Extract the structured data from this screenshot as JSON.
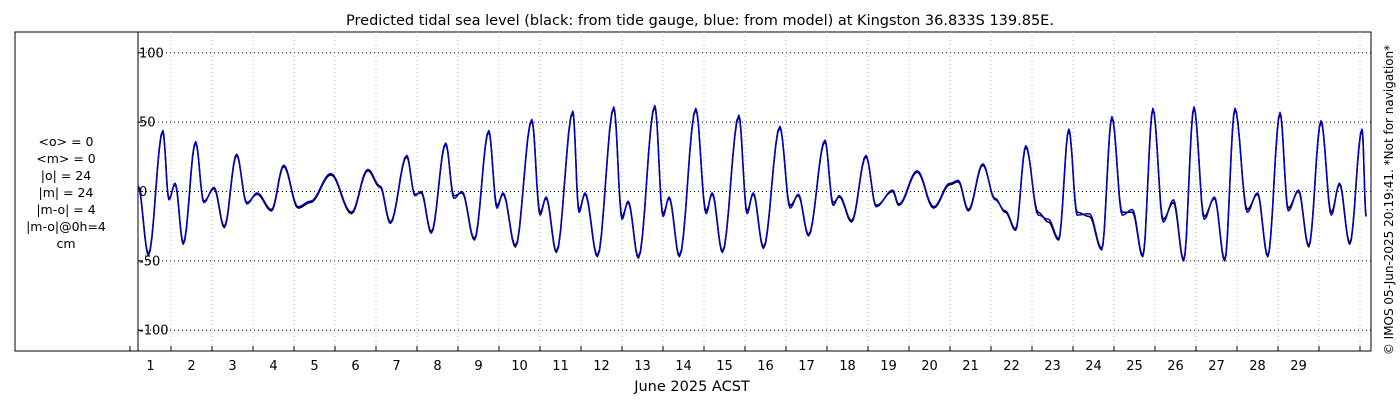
{
  "chart_data": {
    "type": "line",
    "title": "Predicted tidal sea level (black: from tide gauge, blue: from model) at Kingston 36.833S 139.85E.",
    "xlabel": "June 2025 ACST",
    "ylabel": "",
    "ylim": [
      -115,
      115
    ],
    "xlim": [
      0,
      30.15
    ],
    "yticks": [
      -100,
      -50,
      0,
      50,
      100
    ],
    "ytick_labels": [
      "-100",
      "-50",
      "0",
      "50",
      "100"
    ],
    "xticks": [
      1,
      2,
      3,
      4,
      5,
      6,
      7,
      8,
      9,
      10,
      11,
      12,
      13,
      14,
      15,
      16,
      17,
      18,
      19,
      20,
      21,
      22,
      23,
      24,
      25,
      26,
      27,
      28,
      29
    ],
    "xtick_labels": [
      "1",
      "2",
      "3",
      "4",
      "5",
      "6",
      "7",
      "8",
      "9",
      "10",
      "11",
      "12",
      "13",
      "14",
      "15",
      "16",
      "17",
      "18",
      "19",
      "20",
      "21",
      "22",
      "23",
      "24",
      "25",
      "26",
      "27",
      "28",
      "29"
    ],
    "grid": "dotted",
    "series": [
      {
        "color": "#000000",
        "peaks": [
          {
            "t": 0.2,
            "v": 3
          },
          {
            "t": 0.45,
            "v": -46
          },
          {
            "t": 0.8,
            "v": 43
          },
          {
            "t": 0.95,
            "v": -5
          },
          {
            "t": 1.1,
            "v": 5
          },
          {
            "t": 1.3,
            "v": -38
          },
          {
            "t": 1.6,
            "v": 35
          },
          {
            "t": 1.8,
            "v": -7
          },
          {
            "t": 2.05,
            "v": 2
          },
          {
            "t": 2.3,
            "v": -26
          },
          {
            "t": 2.6,
            "v": 26
          },
          {
            "t": 2.85,
            "v": -8
          },
          {
            "t": 3.1,
            "v": -2
          },
          {
            "t": 3.45,
            "v": -14
          },
          {
            "t": 3.75,
            "v": 18
          },
          {
            "t": 4.1,
            "v": -12
          },
          {
            "t": 4.4,
            "v": -8
          },
          {
            "t": 4.9,
            "v": 12
          },
          {
            "t": 5.4,
            "v": -16
          },
          {
            "t": 5.8,
            "v": 15
          },
          {
            "t": 6.1,
            "v": 3
          },
          {
            "t": 6.35,
            "v": -23
          },
          {
            "t": 6.75,
            "v": 25
          },
          {
            "t": 6.95,
            "v": -2
          },
          {
            "t": 7.1,
            "v": -1
          },
          {
            "t": 7.35,
            "v": -30
          },
          {
            "t": 7.7,
            "v": 34
          },
          {
            "t": 7.9,
            "v": -3
          },
          {
            "t": 8.1,
            "v": -1
          },
          {
            "t": 8.4,
            "v": -35
          },
          {
            "t": 8.75,
            "v": 43
          },
          {
            "t": 8.95,
            "v": -10
          },
          {
            "t": 9.1,
            "v": -2
          },
          {
            "t": 9.4,
            "v": -40
          },
          {
            "t": 9.8,
            "v": 51
          },
          {
            "t": 10.0,
            "v": -15
          },
          {
            "t": 10.15,
            "v": -5
          },
          {
            "t": 10.4,
            "v": -44
          },
          {
            "t": 10.8,
            "v": 57
          },
          {
            "t": 10.95,
            "v": -13
          },
          {
            "t": 11.1,
            "v": -2
          },
          {
            "t": 11.4,
            "v": -47
          },
          {
            "t": 11.8,
            "v": 60
          },
          {
            "t": 12.0,
            "v": -18
          },
          {
            "t": 12.15,
            "v": -8
          },
          {
            "t": 12.4,
            "v": -48
          },
          {
            "t": 12.8,
            "v": 61
          },
          {
            "t": 13.0,
            "v": -16
          },
          {
            "t": 13.15,
            "v": -5
          },
          {
            "t": 13.4,
            "v": -47
          },
          {
            "t": 13.8,
            "v": 59
          },
          {
            "t": 14.05,
            "v": -14
          },
          {
            "t": 14.2,
            "v": -2
          },
          {
            "t": 14.45,
            "v": -44
          },
          {
            "t": 14.85,
            "v": 54
          },
          {
            "t": 15.05,
            "v": -14
          },
          {
            "t": 15.2,
            "v": -2
          },
          {
            "t": 15.45,
            "v": -41
          },
          {
            "t": 15.85,
            "v": 46
          },
          {
            "t": 16.1,
            "v": -10
          },
          {
            "t": 16.3,
            "v": -3
          },
          {
            "t": 16.55,
            "v": -32
          },
          {
            "t": 16.95,
            "v": 36
          },
          {
            "t": 17.15,
            "v": -8
          },
          {
            "t": 17.3,
            "v": -4
          },
          {
            "t": 17.6,
            "v": -22
          },
          {
            "t": 17.95,
            "v": 25
          },
          {
            "t": 18.2,
            "v": -10
          },
          {
            "t": 18.6,
            "v": 0
          },
          {
            "t": 18.75,
            "v": -10
          },
          {
            "t": 19.2,
            "v": 14
          },
          {
            "t": 19.6,
            "v": -12
          },
          {
            "t": 20.0,
            "v": 5
          },
          {
            "t": 20.2,
            "v": 7
          },
          {
            "t": 20.45,
            "v": -14
          },
          {
            "t": 20.8,
            "v": 19
          },
          {
            "t": 21.1,
            "v": -5
          },
          {
            "t": 21.35,
            "v": -15
          },
          {
            "t": 21.6,
            "v": -28
          },
          {
            "t": 21.85,
            "v": 32
          },
          {
            "t": 22.15,
            "v": -15
          },
          {
            "t": 22.4,
            "v": -22
          },
          {
            "t": 22.65,
            "v": -35
          },
          {
            "t": 22.9,
            "v": 44
          },
          {
            "t": 23.1,
            "v": -15
          },
          {
            "t": 23.4,
            "v": -18
          },
          {
            "t": 23.7,
            "v": -42
          },
          {
            "t": 23.95,
            "v": 53
          },
          {
            "t": 24.2,
            "v": -15
          },
          {
            "t": 24.45,
            "v": -15
          },
          {
            "t": 24.7,
            "v": -47
          },
          {
            "t": 24.95,
            "v": 59
          },
          {
            "t": 25.2,
            "v": -20
          },
          {
            "t": 25.45,
            "v": -8
          },
          {
            "t": 25.7,
            "v": -50
          },
          {
            "t": 25.95,
            "v": 60
          },
          {
            "t": 26.2,
            "v": -18
          },
          {
            "t": 26.45,
            "v": -5
          },
          {
            "t": 26.7,
            "v": -50
          },
          {
            "t": 26.95,
            "v": 59
          },
          {
            "t": 27.25,
            "v": -13
          },
          {
            "t": 27.5,
            "v": -2
          },
          {
            "t": 27.75,
            "v": -47
          },
          {
            "t": 28.05,
            "v": 56
          },
          {
            "t": 28.25,
            "v": -12
          },
          {
            "t": 28.5,
            "v": 0
          },
          {
            "t": 28.75,
            "v": -40
          },
          {
            "t": 29.05,
            "v": 50
          },
          {
            "t": 29.3,
            "v": -15
          },
          {
            "t": 29.5,
            "v": 5
          },
          {
            "t": 29.75,
            "v": -38
          },
          {
            "t": 30.05,
            "v": 44
          },
          {
            "t": 30.15,
            "v": -18
          }
        ]
      },
      {
        "color": "#0000cc",
        "peaks": [
          {
            "t": 0.2,
            "v": 4
          },
          {
            "t": 0.45,
            "v": -45
          },
          {
            "t": 0.8,
            "v": 44
          },
          {
            "t": 0.95,
            "v": -6
          },
          {
            "t": 1.1,
            "v": 6
          },
          {
            "t": 1.3,
            "v": -37
          },
          {
            "t": 1.6,
            "v": 36
          },
          {
            "t": 1.8,
            "v": -8
          },
          {
            "t": 2.05,
            "v": 3
          },
          {
            "t": 2.3,
            "v": -25
          },
          {
            "t": 2.6,
            "v": 27
          },
          {
            "t": 2.85,
            "v": -9
          },
          {
            "t": 3.1,
            "v": -1
          },
          {
            "t": 3.45,
            "v": -13
          },
          {
            "t": 3.75,
            "v": 19
          },
          {
            "t": 4.1,
            "v": -11
          },
          {
            "t": 4.4,
            "v": -7
          },
          {
            "t": 4.9,
            "v": 13
          },
          {
            "t": 5.4,
            "v": -15
          },
          {
            "t": 5.8,
            "v": 16
          },
          {
            "t": 6.1,
            "v": 4
          },
          {
            "t": 6.35,
            "v": -22
          },
          {
            "t": 6.75,
            "v": 26
          },
          {
            "t": 6.95,
            "v": -3
          },
          {
            "t": 7.1,
            "v": 0
          },
          {
            "t": 7.35,
            "v": -29
          },
          {
            "t": 7.7,
            "v": 35
          },
          {
            "t": 7.9,
            "v": -5
          },
          {
            "t": 8.1,
            "v": 0
          },
          {
            "t": 8.4,
            "v": -34
          },
          {
            "t": 8.75,
            "v": 44
          },
          {
            "t": 8.95,
            "v": -12
          },
          {
            "t": 9.1,
            "v": -1
          },
          {
            "t": 9.4,
            "v": -39
          },
          {
            "t": 9.8,
            "v": 52
          },
          {
            "t": 10.0,
            "v": -17
          },
          {
            "t": 10.15,
            "v": -4
          },
          {
            "t": 10.4,
            "v": -43
          },
          {
            "t": 10.8,
            "v": 58
          },
          {
            "t": 10.95,
            "v": -15
          },
          {
            "t": 11.1,
            "v": -1
          },
          {
            "t": 11.4,
            "v": -46
          },
          {
            "t": 11.8,
            "v": 61
          },
          {
            "t": 12.0,
            "v": -20
          },
          {
            "t": 12.15,
            "v": -7
          },
          {
            "t": 12.4,
            "v": -47
          },
          {
            "t": 12.8,
            "v": 62
          },
          {
            "t": 13.0,
            "v": -18
          },
          {
            "t": 13.15,
            "v": -4
          },
          {
            "t": 13.4,
            "v": -46
          },
          {
            "t": 13.8,
            "v": 60
          },
          {
            "t": 14.05,
            "v": -16
          },
          {
            "t": 14.2,
            "v": -1
          },
          {
            "t": 14.45,
            "v": -43
          },
          {
            "t": 14.85,
            "v": 55
          },
          {
            "t": 15.05,
            "v": -16
          },
          {
            "t": 15.2,
            "v": -1
          },
          {
            "t": 15.45,
            "v": -40
          },
          {
            "t": 15.85,
            "v": 47
          },
          {
            "t": 16.1,
            "v": -12
          },
          {
            "t": 16.3,
            "v": -2
          },
          {
            "t": 16.55,
            "v": -31
          },
          {
            "t": 16.95,
            "v": 37
          },
          {
            "t": 17.15,
            "v": -10
          },
          {
            "t": 17.3,
            "v": -3
          },
          {
            "t": 17.6,
            "v": -21
          },
          {
            "t": 17.95,
            "v": 26
          },
          {
            "t": 18.2,
            "v": -11
          },
          {
            "t": 18.6,
            "v": 1
          },
          {
            "t": 18.75,
            "v": -9
          },
          {
            "t": 19.2,
            "v": 15
          },
          {
            "t": 19.6,
            "v": -11
          },
          {
            "t": 20.0,
            "v": 6
          },
          {
            "t": 20.2,
            "v": 8
          },
          {
            "t": 20.45,
            "v": -13
          },
          {
            "t": 20.8,
            "v": 20
          },
          {
            "t": 21.1,
            "v": -6
          },
          {
            "t": 21.35,
            "v": -14
          },
          {
            "t": 21.6,
            "v": -27
          },
          {
            "t": 21.85,
            "v": 33
          },
          {
            "t": 22.15,
            "v": -17
          },
          {
            "t": 22.4,
            "v": -20
          },
          {
            "t": 22.65,
            "v": -34
          },
          {
            "t": 22.9,
            "v": 45
          },
          {
            "t": 23.1,
            "v": -17
          },
          {
            "t": 23.4,
            "v": -16
          },
          {
            "t": 23.7,
            "v": -41
          },
          {
            "t": 23.95,
            "v": 54
          },
          {
            "t": 24.2,
            "v": -17
          },
          {
            "t": 24.45,
            "v": -13
          },
          {
            "t": 24.7,
            "v": -46
          },
          {
            "t": 24.95,
            "v": 60
          },
          {
            "t": 25.2,
            "v": -22
          },
          {
            "t": 25.45,
            "v": -6
          },
          {
            "t": 25.7,
            "v": -49
          },
          {
            "t": 25.95,
            "v": 61
          },
          {
            "t": 26.2,
            "v": -20
          },
          {
            "t": 26.45,
            "v": -4
          },
          {
            "t": 26.7,
            "v": -49
          },
          {
            "t": 26.95,
            "v": 60
          },
          {
            "t": 27.25,
            "v": -15
          },
          {
            "t": 27.5,
            "v": -1
          },
          {
            "t": 27.75,
            "v": -46
          },
          {
            "t": 28.05,
            "v": 57
          },
          {
            "t": 28.25,
            "v": -14
          },
          {
            "t": 28.5,
            "v": 1
          },
          {
            "t": 28.75,
            "v": -39
          },
          {
            "t": 29.05,
            "v": 51
          },
          {
            "t": 29.3,
            "v": -17
          },
          {
            "t": 29.5,
            "v": 6
          },
          {
            "t": 29.75,
            "v": -37
          },
          {
            "t": 30.05,
            "v": 45
          },
          {
            "t": 30.15,
            "v": -17
          }
        ]
      }
    ]
  },
  "stats": {
    "mean_obs": "<o> = 0",
    "mean_model": "<m> = 0",
    "abs_obs": "|o| = 24",
    "abs_model": "|m| = 24",
    "abs_diff": "|m-o| = 4",
    "abs_diff_0h": "|m-o|@0h=4",
    "unit": "cm"
  },
  "credit": "© IMOS 05-Jun-2025 20:19:41. *Not for navigation*"
}
